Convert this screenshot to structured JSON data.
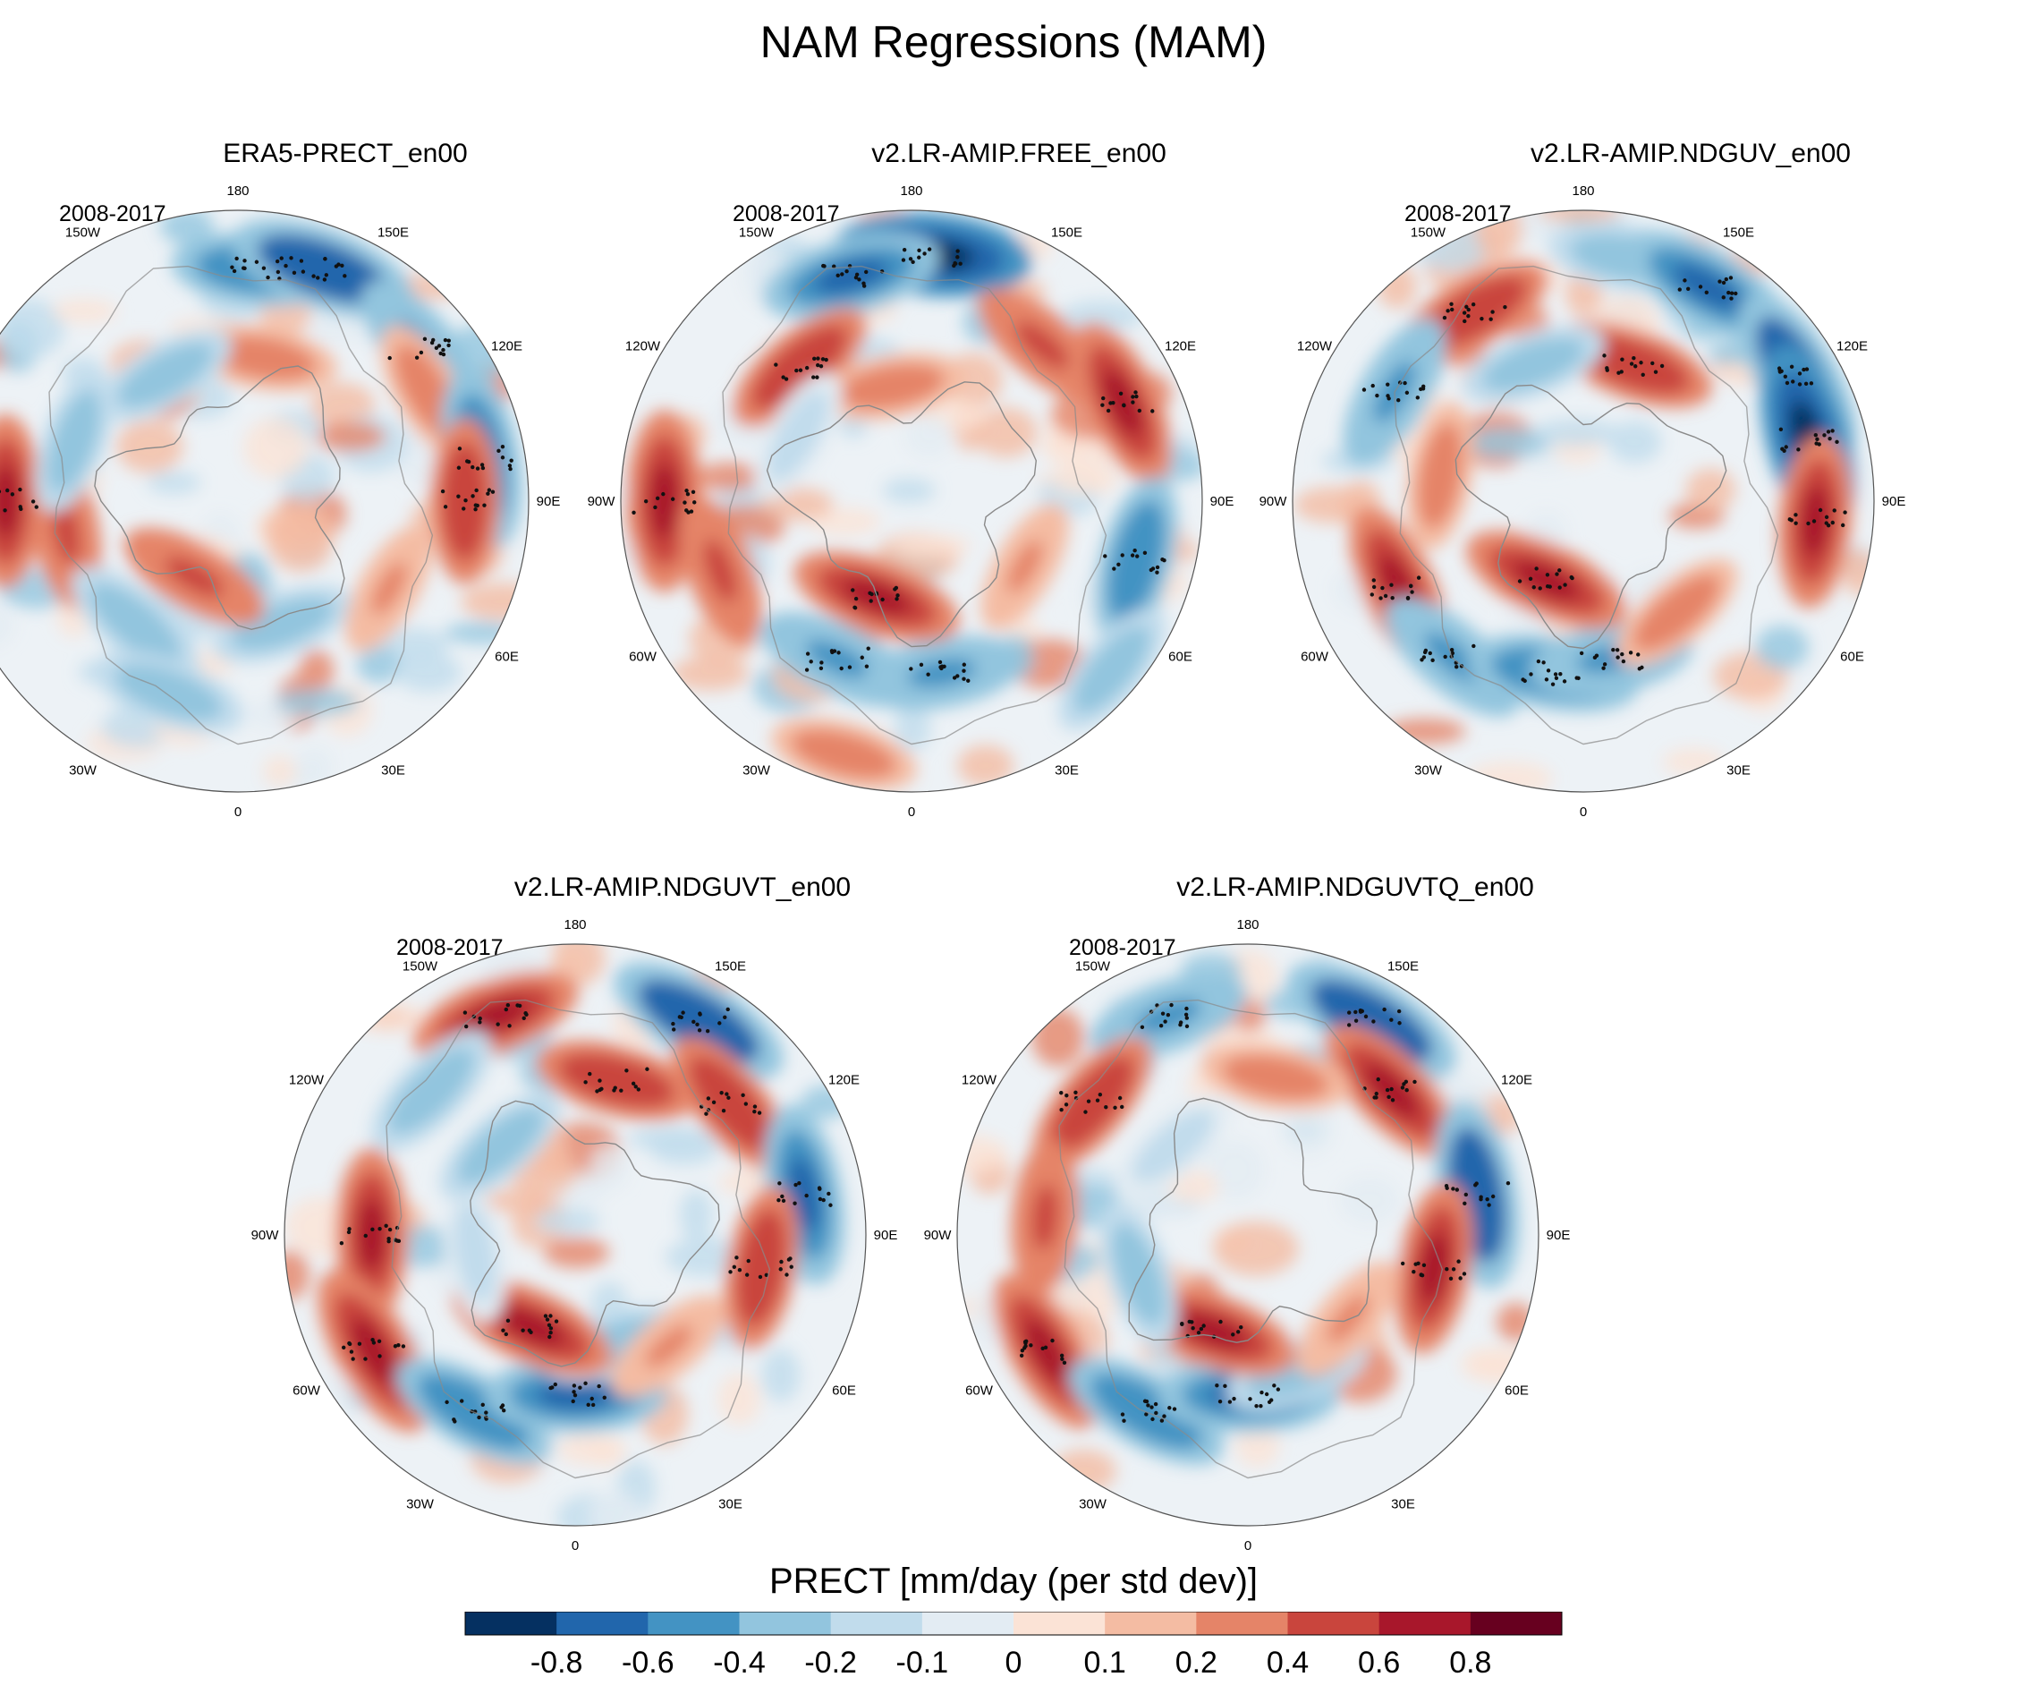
{
  "title": "NAM Regressions (MAM)",
  "chart_data": {
    "type": "heatmap",
    "projection": "north-polar-stereographic",
    "variable": "PRECT",
    "period": "2008-2017",
    "longitude_labels": [
      "180",
      "150E",
      "120E",
      "90E",
      "60E",
      "30E",
      "0",
      "30W",
      "60W",
      "90W",
      "120W",
      "150W"
    ],
    "panels": [
      {
        "name": "ERA5-PRECT_en00",
        "period": "2008-2017"
      },
      {
        "name": "v2.LR-AMIP.FREE_en00",
        "period": "2008-2017"
      },
      {
        "name": "v2.LR-AMIP.NDGUV_en00",
        "period": "2008-2017"
      },
      {
        "name": "v2.LR-AMIP.NDGUVT_en00",
        "period": "2008-2017"
      },
      {
        "name": "v2.LR-AMIP.NDGUVTQ_en00",
        "period": "2008-2017"
      }
    ],
    "colorbar": {
      "title": "PRECT [mm/day (per std dev)]",
      "levels": [
        -0.8,
        -0.6,
        -0.4,
        -0.2,
        -0.1,
        0,
        0.1,
        0.2,
        0.4,
        0.6,
        0.8
      ],
      "tick_labels": [
        "-0.8",
        "-0.6",
        "-0.4",
        "-0.2",
        "-0.1",
        "0",
        "0.1",
        "0.2",
        "0.4",
        "0.6",
        "0.8"
      ],
      "colors": [
        "#053061",
        "#2166ac",
        "#4393c3",
        "#92c5de",
        "#c1dcec",
        "#e3ecf3",
        "#fbe3d6",
        "#f4bca3",
        "#e58468",
        "#c9453d",
        "#a8172b",
        "#67001f"
      ]
    }
  }
}
